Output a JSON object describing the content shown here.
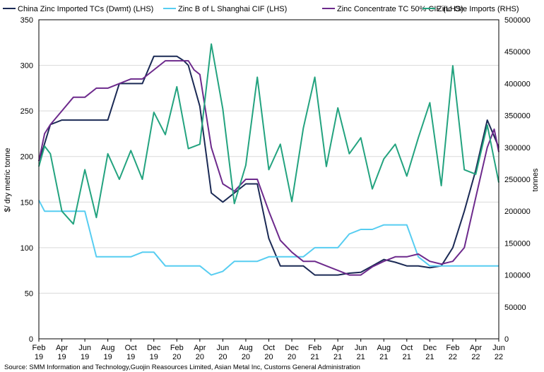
{
  "chart_data": {
    "type": "line",
    "title": "",
    "ylabel_left": "$/ dry metric tonne",
    "ylabel_right": "tonnes",
    "xlabel": "",
    "ylim_left": [
      0,
      350
    ],
    "ylim_right": [
      0,
      500000
    ],
    "yticks_left": [
      "0",
      "50",
      "100",
      "150",
      "200",
      "250",
      "300",
      "350"
    ],
    "yticks_right": [
      "0",
      "50000",
      "100000",
      "150000",
      "200000",
      "250000",
      "300000",
      "350000",
      "400000",
      "450000",
      "500000"
    ],
    "x_tick_labels": [
      [
        "Feb",
        "19"
      ],
      [
        "Apr",
        "19"
      ],
      [
        "Jun",
        "19"
      ],
      [
        "Aug",
        "19"
      ],
      [
        "Oct",
        "19"
      ],
      [
        "Dec",
        "19"
      ],
      [
        "Feb",
        "20"
      ],
      [
        "Apr",
        "20"
      ],
      [
        "Jun",
        "20"
      ],
      [
        "Aug",
        "20"
      ],
      [
        "Oct",
        "20"
      ],
      [
        "Dec",
        "20"
      ],
      [
        "Feb",
        "21"
      ],
      [
        "Apr",
        "21"
      ],
      [
        "Jun",
        "21"
      ],
      [
        "Aug",
        "21"
      ],
      [
        "Oct",
        "21"
      ],
      [
        "Dec",
        "21"
      ],
      [
        "Feb",
        "22"
      ],
      [
        "Apr",
        "22"
      ],
      [
        "Jun",
        "22"
      ]
    ],
    "series": [
      {
        "name": "China Zinc Imported TCs (Dwmt) (LHS)",
        "axis": "left",
        "color": "#1b2a55",
        "points": [
          [
            0,
            195
          ],
          [
            0.4,
            210
          ],
          [
            1,
            235
          ],
          [
            2,
            240
          ],
          [
            3,
            240
          ],
          [
            4,
            240
          ],
          [
            5,
            240
          ],
          [
            6,
            240
          ],
          [
            7,
            280
          ],
          [
            8,
            280
          ],
          [
            9,
            280
          ],
          [
            10,
            310
          ],
          [
            11,
            310
          ],
          [
            12,
            310
          ],
          [
            12.6,
            305
          ],
          [
            13,
            300
          ],
          [
            14,
            255
          ],
          [
            15,
            160
          ],
          [
            16,
            150
          ],
          [
            17,
            160
          ],
          [
            18,
            170
          ],
          [
            19,
            170
          ],
          [
            20,
            110
          ],
          [
            21,
            80
          ],
          [
            22,
            80
          ],
          [
            23,
            80
          ],
          [
            24,
            70
          ],
          [
            25,
            70
          ],
          [
            26,
            70
          ],
          [
            27,
            72
          ],
          [
            28,
            73
          ],
          [
            29,
            80
          ],
          [
            30,
            87
          ],
          [
            31,
            84
          ],
          [
            32,
            80
          ],
          [
            33,
            80
          ],
          [
            34,
            78
          ],
          [
            35,
            80
          ],
          [
            36,
            100
          ],
          [
            37,
            140
          ],
          [
            38,
            185
          ],
          [
            39,
            240
          ],
          [
            39.5,
            225
          ],
          [
            40,
            210
          ]
        ]
      },
      {
        "name": "Zinc B of L Shanghai CIF (LHS)",
        "axis": "left",
        "color": "#57cdf1",
        "points": [
          [
            0,
            152
          ],
          [
            0.5,
            140
          ],
          [
            1,
            140
          ],
          [
            2,
            140
          ],
          [
            3,
            140
          ],
          [
            4,
            140
          ],
          [
            5,
            90
          ],
          [
            6,
            90
          ],
          [
            7,
            90
          ],
          [
            8,
            90
          ],
          [
            9,
            95
          ],
          [
            10,
            95
          ],
          [
            11,
            80
          ],
          [
            12,
            80
          ],
          [
            13,
            80
          ],
          [
            14,
            80
          ],
          [
            15,
            70
          ],
          [
            16,
            74
          ],
          [
            17,
            85
          ],
          [
            18,
            85
          ],
          [
            19,
            85
          ],
          [
            20,
            90
          ],
          [
            21,
            90
          ],
          [
            22,
            90
          ],
          [
            23,
            90
          ],
          [
            24,
            100
          ],
          [
            25,
            100
          ],
          [
            26,
            100
          ],
          [
            27,
            115
          ],
          [
            28,
            120
          ],
          [
            29,
            120
          ],
          [
            30,
            125
          ],
          [
            31,
            125
          ],
          [
            32,
            125
          ],
          [
            33,
            90
          ],
          [
            34,
            80
          ],
          [
            35,
            80
          ],
          [
            36,
            80
          ],
          [
            37,
            80
          ],
          [
            38,
            80
          ],
          [
            39,
            80
          ],
          [
            40,
            80
          ]
        ]
      },
      {
        "name": "Zinc Concentrate TC 50% CIF (LHS)",
        "axis": "left",
        "color": "#6d2a8c",
        "points": [
          [
            0,
            195
          ],
          [
            0.5,
            225
          ],
          [
            1,
            235
          ],
          [
            2,
            250
          ],
          [
            3,
            265
          ],
          [
            4,
            265
          ],
          [
            5,
            275
          ],
          [
            6,
            275
          ],
          [
            7,
            280
          ],
          [
            8,
            285
          ],
          [
            9,
            285
          ],
          [
            10,
            295
          ],
          [
            11,
            305
          ],
          [
            12,
            305
          ],
          [
            13,
            305
          ],
          [
            13.5,
            295
          ],
          [
            14,
            290
          ],
          [
            15,
            210
          ],
          [
            16,
            170
          ],
          [
            17,
            162
          ],
          [
            18,
            175
          ],
          [
            19,
            175
          ],
          [
            20,
            140
          ],
          [
            21,
            108
          ],
          [
            22,
            95
          ],
          [
            23,
            85
          ],
          [
            24,
            85
          ],
          [
            25,
            80
          ],
          [
            26,
            75
          ],
          [
            27,
            70
          ],
          [
            28,
            70
          ],
          [
            29,
            79
          ],
          [
            30,
            85
          ],
          [
            31,
            90
          ],
          [
            32,
            90
          ],
          [
            33,
            93
          ],
          [
            34,
            85
          ],
          [
            35,
            82
          ],
          [
            36,
            85
          ],
          [
            37,
            100
          ],
          [
            38,
            155
          ],
          [
            39,
            210
          ],
          [
            39.6,
            230
          ],
          [
            40,
            205
          ]
        ]
      },
      {
        "name": "Zinc Ore Imports (RHS)",
        "axis": "right",
        "color": "#23a37f",
        "points": [
          [
            0,
            270000
          ],
          [
            0.5,
            302000
          ],
          [
            1,
            290000
          ],
          [
            2,
            200000
          ],
          [
            3,
            180000
          ],
          [
            4,
            265000
          ],
          [
            5,
            190000
          ],
          [
            6,
            290000
          ],
          [
            7,
            250000
          ],
          [
            8,
            295000
          ],
          [
            9,
            250000
          ],
          [
            10,
            355000
          ],
          [
            11,
            320000
          ],
          [
            12,
            395000
          ],
          [
            13,
            298000
          ],
          [
            14,
            305000
          ],
          [
            15,
            462000
          ],
          [
            16,
            360000
          ],
          [
            17,
            212000
          ],
          [
            18,
            272000
          ],
          [
            19,
            410000
          ],
          [
            20,
            265000
          ],
          [
            21,
            305000
          ],
          [
            22,
            215000
          ],
          [
            23,
            330000
          ],
          [
            24,
            410000
          ],
          [
            25,
            270000
          ],
          [
            26,
            362000
          ],
          [
            27,
            290000
          ],
          [
            28,
            315000
          ],
          [
            29,
            235000
          ],
          [
            30,
            282000
          ],
          [
            31,
            305000
          ],
          [
            32,
            255000
          ],
          [
            33,
            315000
          ],
          [
            34,
            370000
          ],
          [
            35,
            240000
          ],
          [
            36,
            428000
          ],
          [
            37,
            265000
          ],
          [
            38,
            258000
          ],
          [
            39,
            335000
          ],
          [
            40,
            245000
          ]
        ]
      }
    ],
    "legend_position": "top"
  },
  "source": "Source: SMM Information and  Technology,Guojin Reasources Limited, Asian Metal Inc, Customs General Administration"
}
